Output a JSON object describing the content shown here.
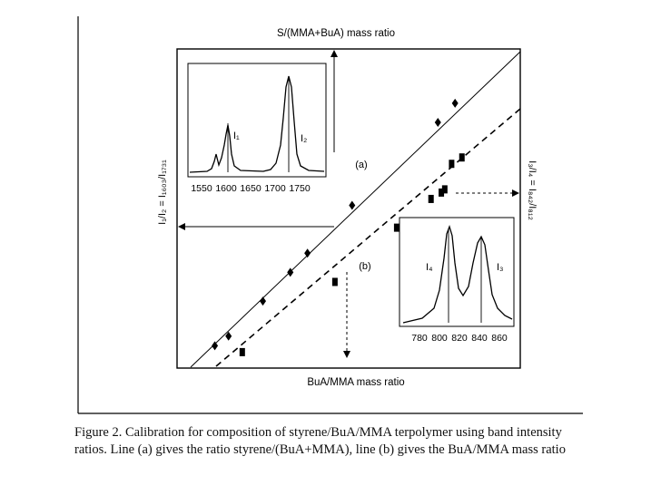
{
  "figure": {
    "top_axis_label": "S/(MMA+BuA) mass ratio",
    "bottom_axis_label": "BuA/MMA mass ratio",
    "left_axis_label": "I₁/I₂ = I₁₆₀₃/I₁₇₃₁",
    "right_axis_label": "I₃/I₄ = I₈₄₂/I₈₁₂",
    "line_a_label": "(a)",
    "line_b_label": "(b)"
  },
  "inset_left": {
    "tick_labels": [
      "1550",
      "1600",
      "1650",
      "1700",
      "1750"
    ],
    "peak1_label": "I₁",
    "peak2_label": "I₂"
  },
  "inset_right": {
    "tick_labels": [
      "780",
      "800",
      "820",
      "840",
      "860"
    ],
    "peak4_label": "I₄",
    "peak3_label": "I₃"
  },
  "chart_data": {
    "type": "scatter",
    "series": [
      {
        "name": "(a)",
        "marker": "diamond",
        "line": "solid",
        "points": [
          [
            0.11,
            0.07
          ],
          [
            0.15,
            0.1
          ],
          [
            0.25,
            0.21
          ],
          [
            0.33,
            0.3
          ],
          [
            0.38,
            0.36
          ],
          [
            0.51,
            0.51
          ],
          [
            0.76,
            0.77
          ],
          [
            0.81,
            0.83
          ]
        ]
      },
      {
        "name": "(b)",
        "marker": "square",
        "line": "dashed",
        "points": [
          [
            0.19,
            0.05
          ],
          [
            0.46,
            0.27
          ],
          [
            0.64,
            0.44
          ],
          [
            0.74,
            0.53
          ],
          [
            0.77,
            0.55
          ],
          [
            0.78,
            0.56
          ],
          [
            0.8,
            0.64
          ],
          [
            0.83,
            0.66
          ]
        ]
      }
    ]
  },
  "caption": {
    "text": "Figure 2. Calibration for composition of styrene/BuA/MMA terpolymer using band intensity ratios. Line (a) gives the ratio styrene/(BuA+MMA), line (b) gives the BuA/MMA mass ratio"
  }
}
